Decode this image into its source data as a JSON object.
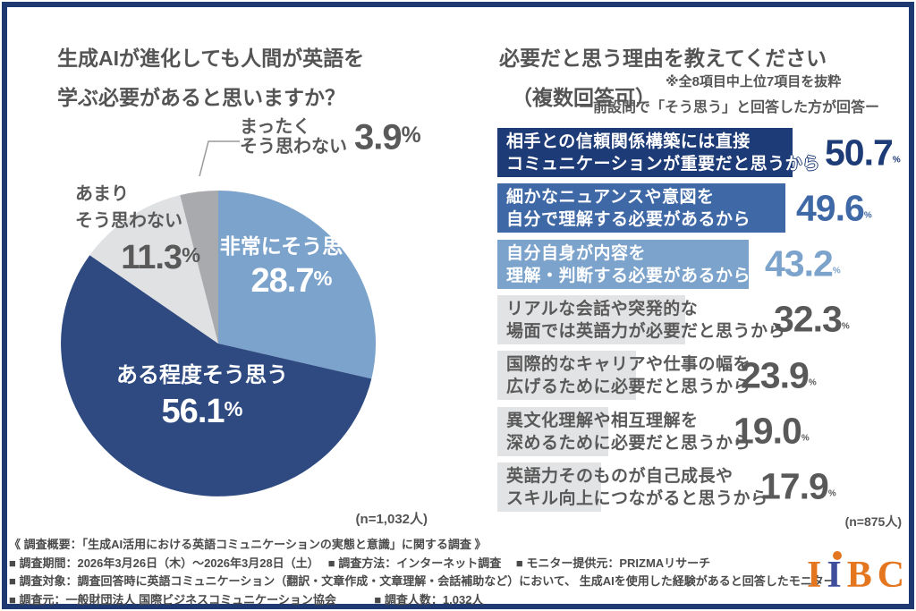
{
  "colors": {
    "frame": "#1f3a73",
    "navy": "#1d3b76",
    "pie_navy": "#2e4a80",
    "medium_blue": "#3f69a6",
    "light_blue": "#7ca3cb",
    "light_gray": "#e2e3e4",
    "pie_light_gray": "#dfe1e2",
    "dark_gray_slice": "#a8aaad",
    "text_gray": "#595959",
    "logo_orange": "#e4761f",
    "logo_blue": "#3f4e9c"
  },
  "left_panel": {
    "title_line1": "生成AIが進化しても人間が英語を",
    "title_line2": "学ぶ必要があると思いますか？",
    "sample_note": "(n=1,032人)"
  },
  "right_panel": {
    "title_line1": "必要だと思う理由を教えてください",
    "title_line2": "（複数回答可）",
    "note": "※全8項目中上位7項目を抜粋",
    "subtitle": "ー前設問で「そう思う」と回答した方が回答ー",
    "sample_note": "(n=875人)"
  },
  "chart_data": [
    {
      "type": "pie",
      "question": "生成AIが進化しても人間が英語を学ぶ必要があると思いますか？",
      "labels": [
        "非常にそう思う",
        "ある程度そう思う",
        "あまりそう思わない",
        "まったくそう思わない"
      ],
      "label_lines": [
        [
          "非常にそう思う"
        ],
        [
          "ある程度そう思う"
        ],
        [
          "あまり",
          "そう思わない"
        ],
        [
          "まったく",
          "そう思わない"
        ]
      ],
      "values": [
        28.7,
        56.1,
        11.3,
        3.9
      ],
      "colors": [
        "#7ca3cb",
        "#2e4a80",
        "#dfe1e2",
        "#a8aaad"
      ],
      "start": "top",
      "direction": "clockwise",
      "n_label": "(n=1,032人)"
    },
    {
      "type": "bar",
      "orientation": "horizontal",
      "question": "必要だと思う理由を教えてください（複数回答可）",
      "categories": [
        "相手との信頼関係構築には直接コミュニケーションが重要だと思うから",
        "細かなニュアンスや意図を自分で理解する必要があるから",
        "自分自身が内容を理解・判断する必要があるから",
        "リアルな会話や突発的な場面では英語力が必要だと思うから",
        "国際的なキャリアや仕事の幅を広げるために必要だと思うから",
        "異文化理解や相互理解を深めるために必要だと思うから",
        "英語力そのものが自己成長やスキル向上につながると思うから"
      ],
      "label_lines": [
        [
          "相手との信頼関係構築には直接",
          "コミュニケーションが重要だと思うから"
        ],
        [
          "細かなニュアンスや意図を",
          "自分で理解する必要があるから"
        ],
        [
          "自分自身が内容を",
          "理解・判断する必要があるから"
        ],
        [
          "リアルな会話や突発的な",
          "場面では英語力が必要だと思うから"
        ],
        [
          "国際的なキャリアや仕事の幅を",
          "広げるために必要だと思うから"
        ],
        [
          "異文化理解や相互理解を",
          "深めるために必要だと思うから"
        ],
        [
          "英語力そのものが自己成長や",
          "スキル向上につながると思うから"
        ]
      ],
      "values": [
        50.7,
        49.6,
        43.2,
        32.3,
        23.9,
        19.0,
        17.9
      ],
      "bar_colors": [
        "#1d3b76",
        "#3f69a6",
        "#7ca3cb",
        "#e2e3e4",
        "#e2e3e4",
        "#e2e3e4",
        "#e2e3e4"
      ],
      "label_colors": [
        "#ffffff",
        "#ffffff",
        "#ffffff",
        "#595959",
        "#595959",
        "#595959",
        "#595959"
      ],
      "value_colors": [
        "#1d3b76",
        "#3f69a6",
        "#7ca3cb",
        "#595959",
        "#595959",
        "#595959",
        "#595959"
      ],
      "xlim": [
        0,
        60
      ],
      "n_label": "(n=875人)"
    }
  ],
  "footer": {
    "lines": [
      "《 調査概要：「生成AI活用における英語コミュニケーションの実態と意識」に関する調査 》",
      "■ 調査期間：2026年3月26日（木）～2026年3月28日（土）　 ■ 調査方法：インターネット調査　 ■ モニター提供元：PRIZMAリサーチ",
      "■ 調査対象：調査回答時に英語コミュニケーション（翻訳・文章作成・文章理解・会話補助など）において、 生成AIを使用した経験があると回答したモニター",
      "■ 調査元：一般財団法人 国際ビジネスコミュニケーション協会　　　 ■ 調査人数：1,032人"
    ]
  },
  "logo": {
    "letters": [
      "I",
      "I",
      "B",
      "C"
    ]
  }
}
